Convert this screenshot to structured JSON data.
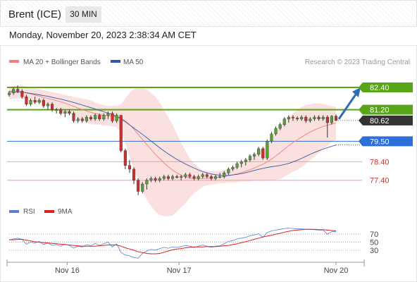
{
  "header": {
    "instrument": "Brent (ICE)",
    "timeframe": "30 MIN",
    "datetime": "Monday, November 20, 2023 2:38:34 AM CET"
  },
  "colors": {
    "bollinger": "#f08080",
    "bollinger_fill": "#fbe0e0",
    "ma50": "#2f5aa8",
    "resistance": "#58a618",
    "support": "#d03030",
    "pivot": "#2e6ed6",
    "candle_up": "#5a9e3c",
    "candle_down": "#c83232",
    "rsi": "#5b7fd6",
    "rsi_ma": "#e02020",
    "last_price_bg": "#333333"
  },
  "legend": [
    {
      "label": "MA 20 + Bollinger Bands",
      "color": "#f08080"
    },
    {
      "label": "MA 50",
      "color": "#2f5aa8"
    }
  ],
  "credit": "Research © 2023 Trading Central",
  "chart_data": [
    {
      "type": "candlestick",
      "y_range": [
        76.1,
        83.5
      ],
      "x_ticks": [
        "Nov 16",
        "Nov 17",
        "Nov 20"
      ],
      "x_tick_index": [
        13.5,
        39.5,
        76
      ],
      "price_lines": [
        {
          "value": 82.4,
          "label": "82.40",
          "kind": "resistance"
        },
        {
          "value": 81.2,
          "label": "81.20",
          "kind": "resistance"
        },
        {
          "value": 80.62,
          "label": "80.62",
          "kind": "last"
        },
        {
          "value": 79.5,
          "label": "79.50",
          "kind": "pivot"
        },
        {
          "value": 78.4,
          "label": "78.40",
          "kind": "support"
        },
        {
          "value": 77.4,
          "label": "77.40",
          "kind": "support"
        }
      ],
      "forecast_target": 82.4,
      "ohlc": [
        [
          82.0,
          82.2,
          81.9,
          82.1
        ],
        [
          82.1,
          82.4,
          82.0,
          82.3
        ],
        [
          82.3,
          82.5,
          82.1,
          82.2
        ],
        [
          82.2,
          82.3,
          81.8,
          81.9
        ],
        [
          81.9,
          82.0,
          81.4,
          81.5
        ],
        [
          81.5,
          81.8,
          81.4,
          81.7
        ],
        [
          81.7,
          81.9,
          81.5,
          81.6
        ],
        [
          81.6,
          81.8,
          81.5,
          81.7
        ],
        [
          81.7,
          81.8,
          81.3,
          81.4
        ],
        [
          81.4,
          81.6,
          81.2,
          81.5
        ],
        [
          81.5,
          81.6,
          81.1,
          81.2
        ],
        [
          81.2,
          81.3,
          81.0,
          81.2
        ],
        [
          81.2,
          81.3,
          80.9,
          81.0
        ],
        [
          81.0,
          81.2,
          80.8,
          81.1
        ],
        [
          81.1,
          81.2,
          80.9,
          81.0
        ],
        [
          81.0,
          81.1,
          80.5,
          80.6
        ],
        [
          80.6,
          80.8,
          80.5,
          80.7
        ],
        [
          80.7,
          80.8,
          80.5,
          80.6
        ],
        [
          80.6,
          80.9,
          80.5,
          80.8
        ],
        [
          80.8,
          80.9,
          80.6,
          80.7
        ],
        [
          80.7,
          81.0,
          80.6,
          80.9
        ],
        [
          80.9,
          81.0,
          80.6,
          80.7
        ],
        [
          80.7,
          81.0,
          80.6,
          80.9
        ],
        [
          80.9,
          81.1,
          80.7,
          81.0
        ],
        [
          81.0,
          81.1,
          80.5,
          80.6
        ],
        [
          80.6,
          81.0,
          80.5,
          80.9
        ],
        [
          80.9,
          80.9,
          78.9,
          79.0
        ],
        [
          79.0,
          79.1,
          78.0,
          78.2
        ],
        [
          78.2,
          78.5,
          77.8,
          78.0
        ],
        [
          78.0,
          78.1,
          77.2,
          77.4
        ],
        [
          77.4,
          77.5,
          76.6,
          76.8
        ],
        [
          76.8,
          77.3,
          76.7,
          77.2
        ],
        [
          77.2,
          77.5,
          76.9,
          77.4
        ],
        [
          77.4,
          77.6,
          77.3,
          77.5
        ],
        [
          77.5,
          77.6,
          77.3,
          77.4
        ],
        [
          77.4,
          77.6,
          77.3,
          77.5
        ],
        [
          77.5,
          77.7,
          77.4,
          77.6
        ],
        [
          77.6,
          77.7,
          77.4,
          77.5
        ],
        [
          77.5,
          77.7,
          77.4,
          77.6
        ],
        [
          77.6,
          77.7,
          77.5,
          77.55
        ],
        [
          77.55,
          77.7,
          77.4,
          77.6
        ],
        [
          77.6,
          77.8,
          77.5,
          77.7
        ],
        [
          77.7,
          77.8,
          77.5,
          77.6
        ],
        [
          77.6,
          77.7,
          77.4,
          77.5
        ],
        [
          77.5,
          77.7,
          77.4,
          77.6
        ],
        [
          77.6,
          77.8,
          77.5,
          77.7
        ],
        [
          77.7,
          77.8,
          77.5,
          77.6
        ],
        [
          77.6,
          77.7,
          77.4,
          77.5
        ],
        [
          77.5,
          77.7,
          77.4,
          77.6
        ],
        [
          77.6,
          77.8,
          77.5,
          77.6
        ],
        [
          77.6,
          77.9,
          77.5,
          77.8
        ],
        [
          77.8,
          78.1,
          77.7,
          78.0
        ],
        [
          78.0,
          78.2,
          77.9,
          78.1
        ],
        [
          78.1,
          78.4,
          78.0,
          78.3
        ],
        [
          78.3,
          78.5,
          78.1,
          78.4
        ],
        [
          78.4,
          78.6,
          78.2,
          78.5
        ],
        [
          78.5,
          78.8,
          78.4,
          78.7
        ],
        [
          78.7,
          78.9,
          78.5,
          78.8
        ],
        [
          78.8,
          79.2,
          78.7,
          79.1
        ],
        [
          79.1,
          79.2,
          78.5,
          78.6
        ],
        [
          78.6,
          79.6,
          78.5,
          79.5
        ],
        [
          79.5,
          80.0,
          79.4,
          79.9
        ],
        [
          79.9,
          80.3,
          79.8,
          80.2
        ],
        [
          80.2,
          80.5,
          80.1,
          80.4
        ],
        [
          80.4,
          80.8,
          80.3,
          80.7
        ],
        [
          80.7,
          80.9,
          80.5,
          80.8
        ],
        [
          80.8,
          80.9,
          80.6,
          80.75
        ],
        [
          80.75,
          80.85,
          80.6,
          80.7
        ],
        [
          80.7,
          80.9,
          80.6,
          80.8
        ],
        [
          80.8,
          80.9,
          80.5,
          80.6
        ],
        [
          80.6,
          80.8,
          80.5,
          80.7
        ],
        [
          80.7,
          80.9,
          80.6,
          80.8
        ],
        [
          80.8,
          80.9,
          80.6,
          80.7
        ],
        [
          80.7,
          80.9,
          80.6,
          80.8
        ],
        [
          80.8,
          80.9,
          79.7,
          80.5
        ],
        [
          80.5,
          80.9,
          80.4,
          80.85
        ],
        [
          80.85,
          80.95,
          80.6,
          80.62
        ]
      ],
      "ma20": [
        82.1,
        82.13,
        82.15,
        82.15,
        82.1,
        82.05,
        81.99,
        81.93,
        81.87,
        81.81,
        81.75,
        81.69,
        81.63,
        81.55,
        81.47,
        81.38,
        81.29,
        81.2,
        81.13,
        81.06,
        81.0,
        80.95,
        80.9,
        80.87,
        80.85,
        80.83,
        80.75,
        80.6,
        80.4,
        80.15,
        79.87,
        79.6,
        79.33,
        79.06,
        78.8,
        78.57,
        78.34,
        78.13,
        77.95,
        77.8,
        77.68,
        77.58,
        77.53,
        77.5,
        77.49,
        77.5,
        77.51,
        77.53,
        77.55,
        77.57,
        77.6,
        77.64,
        77.69,
        77.75,
        77.82,
        77.89,
        77.97,
        78.06,
        78.17,
        78.26,
        78.39,
        78.54,
        78.71,
        78.89,
        79.07,
        79.26,
        79.43,
        79.58,
        79.73,
        79.87,
        80.0,
        80.11,
        80.21,
        80.3,
        80.36,
        80.43,
        80.48
      ],
      "bb_upper": [
        82.45,
        82.48,
        82.5,
        82.5,
        82.45,
        82.4,
        82.35,
        82.3,
        82.25,
        82.2,
        82.15,
        82.1,
        82.05,
        82.0,
        81.95,
        81.9,
        81.85,
        81.8,
        81.75,
        81.7,
        81.6,
        81.5,
        81.45,
        81.4,
        81.4,
        81.4,
        81.5,
        81.8,
        82.1,
        82.3,
        82.4,
        82.4,
        82.3,
        82.1,
        81.9,
        81.6,
        81.2,
        80.8,
        80.4,
        79.9,
        79.4,
        79.0,
        78.6,
        78.3,
        78.1,
        77.95,
        77.9,
        77.9,
        77.9,
        77.9,
        77.95,
        78.0,
        78.1,
        78.2,
        78.3,
        78.45,
        78.6,
        78.75,
        78.95,
        79.15,
        79.4,
        79.7,
        80.0,
        80.3,
        80.55,
        80.8,
        81.0,
        81.2,
        81.35,
        81.45,
        81.5,
        81.55,
        81.55,
        81.5,
        81.45,
        81.4,
        81.35
      ],
      "bb_lower": [
        81.75,
        81.78,
        81.8,
        81.8,
        81.75,
        81.7,
        81.63,
        81.56,
        81.49,
        81.42,
        81.35,
        81.28,
        81.21,
        81.1,
        80.99,
        80.86,
        80.73,
        80.6,
        80.51,
        80.42,
        80.4,
        80.4,
        80.35,
        80.34,
        80.3,
        80.26,
        80.0,
        79.4,
        78.7,
        78.0,
        77.34,
        76.8,
        76.36,
        76.02,
        75.7,
        75.54,
        75.48,
        75.46,
        75.5,
        75.7,
        75.96,
        76.16,
        76.46,
        76.7,
        76.88,
        77.05,
        77.12,
        77.16,
        77.2,
        77.24,
        77.25,
        77.28,
        77.28,
        77.3,
        77.34,
        77.33,
        77.34,
        77.37,
        77.39,
        77.37,
        77.38,
        77.38,
        77.42,
        77.48,
        77.59,
        77.72,
        77.86,
        77.96,
        78.11,
        78.29,
        78.5,
        78.67,
        78.87,
        79.1,
        79.27,
        79.46,
        79.61
      ],
      "ma50": [
        82.2,
        82.18,
        82.16,
        82.14,
        82.11,
        82.08,
        82.04,
        82.0,
        81.96,
        81.92,
        81.87,
        81.82,
        81.77,
        81.71,
        81.65,
        81.59,
        81.52,
        81.45,
        81.38,
        81.31,
        81.24,
        81.16,
        81.09,
        81.01,
        80.93,
        80.84,
        80.7,
        80.55,
        80.38,
        80.21,
        80.04,
        79.87,
        79.69,
        79.51,
        79.33,
        79.15,
        78.98,
        78.82,
        78.67,
        78.53,
        78.4,
        78.28,
        78.17,
        78.06,
        77.96,
        77.87,
        77.8,
        77.74,
        77.7,
        77.67,
        77.66,
        77.67,
        77.69,
        77.72,
        77.76,
        77.81,
        77.87,
        77.93,
        77.99,
        78.04,
        78.09,
        78.13,
        78.16,
        78.2,
        78.25,
        78.31,
        78.39,
        78.48,
        78.58,
        78.69,
        78.8,
        78.9,
        78.99,
        79.08,
        79.16,
        79.23,
        79.3
      ]
    },
    {
      "type": "line",
      "series": [
        {
          "name": "RSI",
          "values": [
            55,
            58,
            60,
            57,
            45,
            50,
            48,
            52,
            44,
            48,
            42,
            44,
            40,
            45,
            42,
            35,
            40,
            38,
            44,
            41,
            47,
            42,
            46,
            50,
            38,
            46,
            25,
            18,
            16,
            12,
            10,
            22,
            28,
            32,
            30,
            34,
            37,
            35,
            38,
            37,
            39,
            42,
            40,
            37,
            40,
            43,
            40,
            37,
            40,
            41,
            46,
            52,
            54,
            58,
            60,
            62,
            66,
            68,
            71,
            62,
            74,
            78,
            80,
            82,
            84,
            85,
            84,
            83,
            83,
            82,
            82,
            81,
            80,
            80,
            70,
            76,
            76
          ]
        },
        {
          "name": "9MA",
          "values": [
            56,
            56,
            57,
            57,
            55,
            53,
            51,
            50,
            49,
            48,
            47,
            46,
            45,
            44,
            43,
            42,
            41,
            40,
            40,
            40,
            40,
            41,
            42,
            43,
            43,
            43,
            40,
            36,
            33,
            30,
            26,
            24,
            22,
            21,
            21,
            22,
            25,
            28,
            31,
            33,
            34,
            36,
            37,
            38,
            38,
            38,
            39,
            39,
            39,
            40,
            41,
            42,
            44,
            46,
            49,
            51,
            54,
            57,
            60,
            63,
            65,
            67,
            70,
            72,
            75,
            77,
            79,
            80,
            81,
            82,
            82,
            82,
            81,
            81,
            80,
            79,
            78
          ]
        }
      ],
      "y_range": [
        0,
        100
      ],
      "y_ticks": [
        70,
        50,
        30
      ],
      "y_tick_labels": [
        "70",
        "50",
        "30"
      ]
    }
  ]
}
